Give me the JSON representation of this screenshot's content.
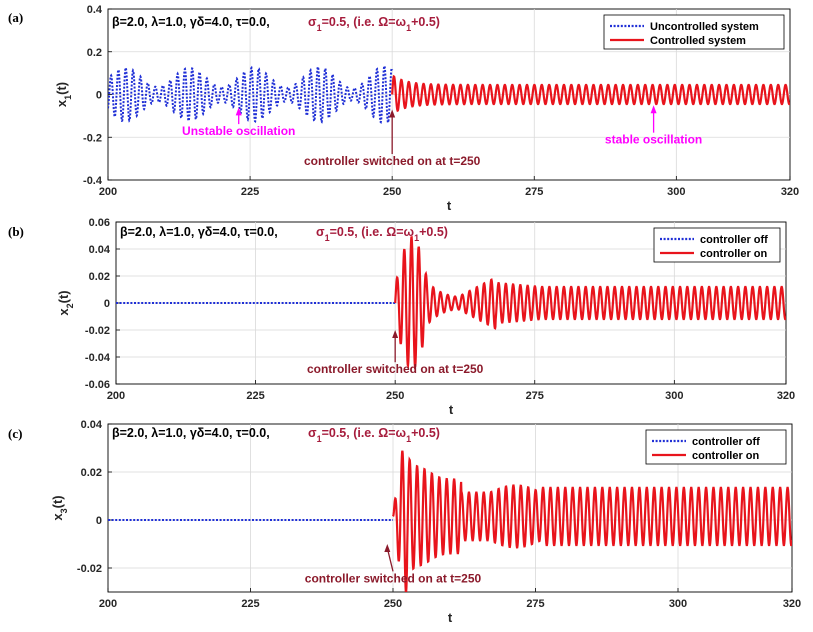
{
  "colors": {
    "uncontrolled": "#1f2fd6",
    "controlled": "#e8141c",
    "switch_annot": "#8b1a2b",
    "osc_annot": "#ff00ff",
    "sigma_text": "#a61c3c"
  },
  "chart_data": [
    {
      "type": "line",
      "panel_label": "(a)",
      "ylabel": "x1(t)",
      "ylabel_main": "x",
      "ylabel_sub": "1",
      "ylabel_suffix": "(t)",
      "xlabel": "t",
      "xlim": [
        200,
        320
      ],
      "ylim": [
        -0.4,
        0.4
      ],
      "xticks": [
        200,
        225,
        250,
        275,
        300,
        320
      ],
      "xtick_labels": [
        "200",
        "225",
        "250",
        "275",
        "300",
        "320"
      ],
      "yticks": [
        -0.4,
        -0.2,
        0,
        0.2,
        0.4
      ],
      "ytick_labels": [
        "-0.4",
        "-0.2",
        "0",
        "0.2",
        "0.4"
      ],
      "params_text": "β=2.0, λ=1.0,  γδ=4.0, τ=0.0,",
      "sigma_text": "σ1=0.5, (i.e. Ω=ω1+0.5)",
      "legend": [
        "Uncontrolled system",
        "Controlled system"
      ],
      "series": [
        {
          "name": "Uncontrolled system",
          "style": "dotted",
          "x_range": [
            200,
            250
          ],
          "envelope": "unstable",
          "amplitude_range": [
            0.03,
            0.13
          ],
          "period": 1.3
        },
        {
          "name": "Controlled system",
          "style": "solid",
          "x_range": [
            250,
            320
          ],
          "transient_peak": 0.09,
          "steady_amplitude": 0.045,
          "period": 1.3
        }
      ],
      "annotations": [
        {
          "text": "Unstable oscillation",
          "x": 223,
          "y": -0.19,
          "arrow_to": [
            223,
            -0.06
          ],
          "color": "osc"
        },
        {
          "text": "controller switched on at t=250",
          "x": 250,
          "y": -0.33,
          "arrow_to": [
            250,
            -0.07
          ],
          "color": "switch"
        },
        {
          "text": "stable oscillation",
          "x": 296,
          "y": -0.23,
          "arrow_to": [
            296,
            -0.05
          ],
          "color": "osc"
        }
      ]
    },
    {
      "type": "line",
      "panel_label": "(b)",
      "ylabel": "x2(t)",
      "ylabel_main": "x",
      "ylabel_sub": "2",
      "ylabel_suffix": "(t)",
      "xlabel": "t",
      "xlim": [
        200,
        320
      ],
      "ylim": [
        -0.06,
        0.06
      ],
      "xticks": [
        200,
        225,
        250,
        275,
        300,
        320
      ],
      "xtick_labels": [
        "200",
        "225",
        "250",
        "275",
        "300",
        "320"
      ],
      "yticks": [
        -0.06,
        -0.04,
        -0.02,
        0,
        0.02,
        0.04,
        0.06
      ],
      "ytick_labels": [
        "-0.06",
        "-0.04",
        "-0.02",
        "0",
        "0.02",
        "0.04",
        "0.06"
      ],
      "params_text": "β=2.0, λ=1.0,  γδ=4.0, τ=0.0,",
      "sigma_text": "σ1=0.5, (i.e. Ω=ω1+0.5)",
      "legend": [
        "controller off",
        "controller on"
      ],
      "series": [
        {
          "name": "controller off",
          "style": "dotted",
          "x_range": [
            200,
            250
          ],
          "value": 0
        },
        {
          "name": "controller on",
          "style": "solid",
          "x_range": [
            250,
            320
          ],
          "transient_peak": 0.049,
          "steady_amplitude": 0.012,
          "period": 1.3
        }
      ],
      "annotations": [
        {
          "text": "controller switched on at t=250",
          "x": 250,
          "y": -0.052,
          "arrow_to": [
            250,
            -0.02
          ],
          "color": "switch"
        }
      ]
    },
    {
      "type": "line",
      "panel_label": "(c)",
      "ylabel": "x3(t)",
      "ylabel_main": "x",
      "ylabel_sub": "3",
      "ylabel_suffix": "(t)",
      "xlabel": "t",
      "xlim": [
        200,
        320
      ],
      "ylim": [
        -0.03,
        0.04
      ],
      "xticks": [
        200,
        225,
        250,
        275,
        300,
        320
      ],
      "xtick_labels": [
        "200",
        "225",
        "250",
        "275",
        "300",
        "320"
      ],
      "yticks": [
        -0.02,
        0,
        0.02,
        0.04
      ],
      "ytick_labels": [
        "-0.02",
        "0",
        "0.02",
        "0.04"
      ],
      "params_text": "β=2.0, λ=1.0,  γδ=4.0, τ=0.0,",
      "sigma_text": "σ1=0.5, (i.e. Ω=ω1+0.5)",
      "legend": [
        "controller off",
        "controller on"
      ],
      "series": [
        {
          "name": "controller off",
          "style": "dotted",
          "x_range": [
            200,
            250
          ],
          "value": 0
        },
        {
          "name": "controller on",
          "style": "solid",
          "x_range": [
            250,
            320
          ],
          "transient_peak": 0.032,
          "steady_amplitude": 0.012,
          "period": 1.3
        }
      ],
      "annotations": [
        {
          "text": "controller switched on at t=250",
          "x": 250,
          "y": -0.026,
          "arrow_to": [
            249,
            -0.01
          ],
          "color": "switch"
        }
      ]
    }
  ]
}
